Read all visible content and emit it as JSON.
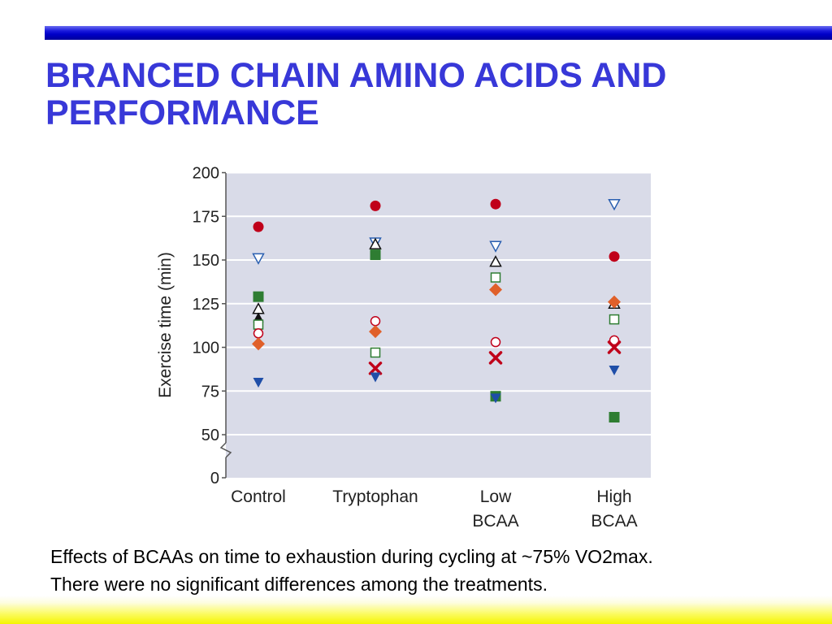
{
  "slide": {
    "title": "BRANCED CHAIN AMINO ACIDS AND PERFORMANCE",
    "caption_lines": [
      "Effects of BCAAs on time to exhaustion during cycling at ~75% VO2max.",
      "There were no significant differences among the treatments."
    ],
    "colors": {
      "top_bar": "#0000c8",
      "title": "#3838d8",
      "bottom_bar": "#f4f400",
      "plot_background": "#d9dbe8"
    }
  },
  "chart_data": {
    "type": "scatter",
    "ylabel": "Exercise time (min)",
    "categories": [
      [
        "Control"
      ],
      [
        "Tryptophan"
      ],
      [
        "Low",
        "BCAA"
      ],
      [
        "High",
        "BCAA"
      ]
    ],
    "yticks": [
      0,
      50,
      75,
      100,
      125,
      150,
      175,
      200
    ],
    "axis_break": "between 0 and 50",
    "ylim": [
      0,
      200
    ],
    "grid": true,
    "legend": "none",
    "series": [
      {
        "marker": "filled-circle",
        "color": "#c0001a",
        "values": [
          169,
          181,
          182,
          152
        ]
      },
      {
        "marker": "open-triangle-down",
        "color": "#2a5fb0",
        "values": [
          151,
          160,
          158,
          182
        ]
      },
      {
        "marker": "filled-square",
        "color": "#2e7d32",
        "values": [
          129,
          153,
          72,
          60
        ]
      },
      {
        "marker": "open-triangle-up",
        "color": "#111111",
        "values": [
          122,
          159,
          149,
          125
        ]
      },
      {
        "marker": "filled-triangle-up",
        "color": "#111111",
        "values": [
          117,
          null,
          null,
          null
        ]
      },
      {
        "marker": "open-square",
        "color": "#2e7d32",
        "values": [
          113,
          97,
          140,
          116
        ]
      },
      {
        "marker": "open-circle",
        "color": "#c0001a",
        "values": [
          108,
          115,
          103,
          104
        ]
      },
      {
        "marker": "filled-diamond",
        "color": "#e0602a",
        "values": [
          102,
          109,
          133,
          126
        ]
      },
      {
        "marker": "cross",
        "color": "#c0001a",
        "values": [
          null,
          88,
          94,
          100
        ]
      },
      {
        "marker": "filled-triangle-down",
        "color": "#1f4ea8",
        "values": [
          80,
          83,
          71,
          87
        ]
      }
    ]
  }
}
